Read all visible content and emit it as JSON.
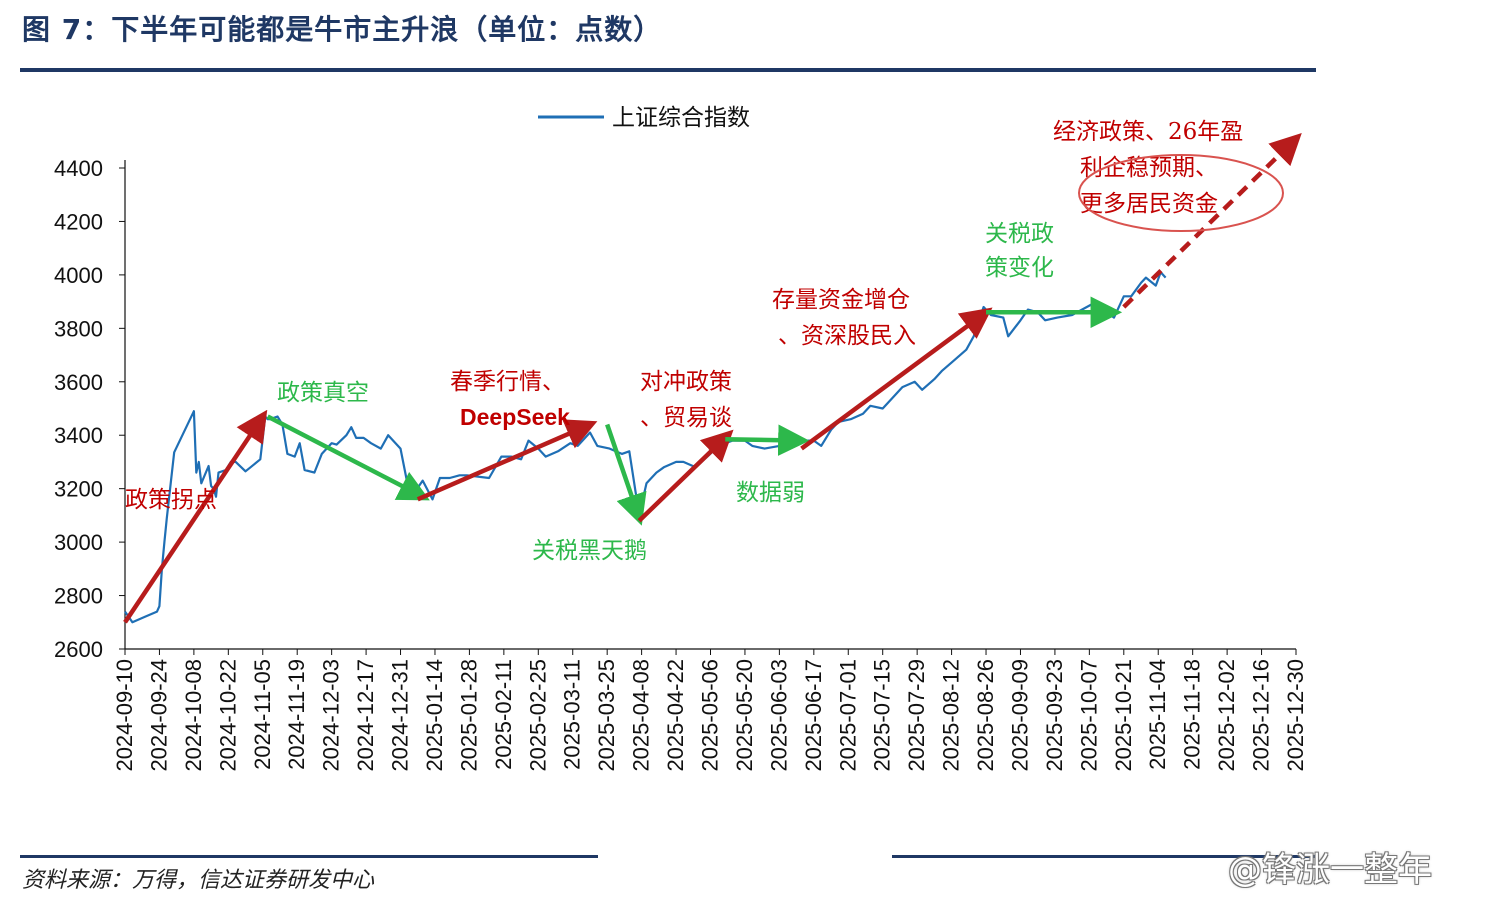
{
  "header": {
    "title": "图 7：下半年可能都是牛市主升浪（单位：点数）"
  },
  "footer": {
    "source": "资料来源：万得，信达证券研发中心",
    "watermark": "@锋涨一整年"
  },
  "colors": {
    "title": "#1f3864",
    "series": "#1f6fb5",
    "red_arrow": "#b71c1c",
    "green_arrow": "#2db84b",
    "red_text": "#c00000",
    "green_text": "#2db84b"
  },
  "chart_data": {
    "type": "line",
    "title": "",
    "xlabel": "",
    "ylabel": "",
    "ylim": [
      2600,
      4400
    ],
    "yticks": [
      2600,
      2800,
      3000,
      3200,
      3400,
      3600,
      3800,
      4000,
      4200,
      4400
    ],
    "xlim": [
      "2024-09-10",
      "2025-12-30"
    ],
    "xticks": [
      "2024-09-10",
      "2024-09-24",
      "2024-10-08",
      "2024-10-22",
      "2024-11-05",
      "2024-11-19",
      "2024-12-03",
      "2024-12-17",
      "2024-12-31",
      "2025-01-14",
      "2025-01-28",
      "2025-02-11",
      "2025-02-25",
      "2025-03-11",
      "2025-03-25",
      "2025-04-08",
      "2025-04-22",
      "2025-05-06",
      "2025-05-20",
      "2025-06-03",
      "2025-06-17",
      "2025-07-01",
      "2025-07-15",
      "2025-07-29",
      "2025-08-12",
      "2025-08-26",
      "2025-09-09",
      "2025-09-23",
      "2025-10-07",
      "2025-10-21",
      "2025-11-04",
      "2025-11-18",
      "2025-12-02",
      "2025-12-16",
      "2025-12-30"
    ],
    "grid": false,
    "legend": {
      "position": "top-center",
      "entries": [
        "上证综合指数"
      ]
    },
    "series": [
      {
        "name": "上证综合指数",
        "x": [
          "2024-09-10",
          "2024-09-13",
          "2024-09-18",
          "2024-09-23",
          "2024-09-24",
          "2024-09-25",
          "2024-09-26",
          "2024-09-27",
          "2024-09-30",
          "2024-10-08",
          "2024-10-09",
          "2024-10-10",
          "2024-10-11",
          "2024-10-14",
          "2024-10-15",
          "2024-10-16",
          "2024-10-17",
          "2024-10-18",
          "2024-10-21",
          "2024-10-23",
          "2024-10-25",
          "2024-10-29",
          "2024-10-31",
          "2024-11-04",
          "2024-11-05",
          "2024-11-06",
          "2024-11-07",
          "2024-11-08",
          "2024-11-11",
          "2024-11-13",
          "2024-11-15",
          "2024-11-18",
          "2024-11-20",
          "2024-11-22",
          "2024-11-26",
          "2024-11-29",
          "2024-12-03",
          "2024-12-05",
          "2024-12-09",
          "2024-12-11",
          "2024-12-13",
          "2024-12-16",
          "2024-12-19",
          "2024-12-23",
          "2024-12-26",
          "2024-12-31",
          "2025-01-03",
          "2025-01-06",
          "2025-01-09",
          "2025-01-13",
          "2025-01-16",
          "2025-01-20",
          "2025-01-24",
          "2025-01-27",
          "2025-02-05",
          "2025-02-10",
          "2025-02-14",
          "2025-02-18",
          "2025-02-21",
          "2025-02-25",
          "2025-02-28",
          "2025-03-05",
          "2025-03-10",
          "2025-03-13",
          "2025-03-18",
          "2025-03-21",
          "2025-03-26",
          "2025-03-31",
          "2025-04-03",
          "2025-04-07",
          "2025-04-08",
          "2025-04-10",
          "2025-04-14",
          "2025-04-17",
          "2025-04-22",
          "2025-04-25",
          "2025-04-30",
          "2025-05-07",
          "2025-05-12",
          "2025-05-15",
          "2025-05-20",
          "2025-05-23",
          "2025-05-28",
          "2025-06-03",
          "2025-06-06",
          "2025-06-10",
          "2025-06-13",
          "2025-06-17",
          "2025-06-20",
          "2025-06-24",
          "2025-06-27",
          "2025-07-02",
          "2025-07-07",
          "2025-07-10",
          "2025-07-15",
          "2025-07-18",
          "2025-07-23",
          "2025-07-28",
          "2025-07-31",
          "2025-08-05",
          "2025-08-08",
          "2025-08-13",
          "2025-08-18",
          "2025-08-21",
          "2025-08-25",
          "2025-08-28",
          "2025-09-02",
          "2025-09-04",
          "2025-09-09",
          "2025-09-12",
          "2025-09-16",
          "2025-09-19",
          "2025-09-24",
          "2025-09-30",
          "2025-10-10",
          "2025-10-14",
          "2025-10-17",
          "2025-10-21",
          "2025-10-24",
          "2025-10-28",
          "2025-10-30",
          "2025-11-03",
          "2025-11-05",
          "2025-11-07"
        ],
        "values": [
          2740,
          2700,
          2720,
          2740,
          2760,
          2900,
          3000,
          3090,
          3336,
          3490,
          3260,
          3300,
          3220,
          3285,
          3210,
          3200,
          3170,
          3260,
          3270,
          3300,
          3300,
          3265,
          3280,
          3310,
          3390,
          3470,
          3460,
          3460,
          3470,
          3440,
          3330,
          3320,
          3370,
          3270,
          3260,
          3330,
          3370,
          3365,
          3400,
          3430,
          3390,
          3390,
          3370,
          3350,
          3400,
          3350,
          3210,
          3190,
          3230,
          3160,
          3240,
          3240,
          3250,
          3250,
          3240,
          3320,
          3320,
          3310,
          3380,
          3350,
          3320,
          3340,
          3370,
          3360,
          3410,
          3360,
          3350,
          3330,
          3340,
          3100,
          3140,
          3220,
          3260,
          3280,
          3300,
          3300,
          3280,
          3340,
          3370,
          3380,
          3380,
          3360,
          3350,
          3360,
          3380,
          3390,
          3380,
          3380,
          3360,
          3420,
          3450,
          3460,
          3480,
          3510,
          3500,
          3530,
          3580,
          3600,
          3570,
          3610,
          3640,
          3680,
          3720,
          3770,
          3880,
          3850,
          3840,
          3770,
          3830,
          3870,
          3860,
          3830,
          3840,
          3850,
          3900,
          3860,
          3840,
          3920,
          3920,
          3970,
          3990,
          3960,
          4010,
          3990
        ]
      }
    ],
    "annotations": [
      {
        "id": "trend1",
        "text": "政策拐点",
        "color": "red",
        "from": [
          "2024-09-10",
          2700
        ],
        "to": [
          "2024-11-05",
          3470
        ]
      },
      {
        "id": "trend2",
        "text": "政策真空",
        "color": "green",
        "from": [
          "2024-11-07",
          3470
        ],
        "to": [
          "2025-01-09",
          3170
        ]
      },
      {
        "id": "trend3",
        "text": "春季行情、DeepSeek",
        "color": "red",
        "from": [
          "2025-01-07",
          3160
        ],
        "to": [
          "2025-03-18",
          3440
        ]
      },
      {
        "id": "trend4",
        "text": "关税黑天鹅",
        "color": "green",
        "from": [
          "2025-03-25",
          3440
        ],
        "to": [
          "2025-04-07",
          3090
        ]
      },
      {
        "id": "trend5",
        "text": "对冲政策、贸易谈判",
        "color": "red",
        "from": [
          "2025-04-07",
          3080
        ],
        "to": [
          "2025-05-13",
          3400
        ]
      },
      {
        "id": "trend6",
        "text": "数据弱",
        "color": "green",
        "from": [
          "2025-05-12",
          3385
        ],
        "to": [
          "2025-06-12",
          3380
        ]
      },
      {
        "id": "trend7",
        "text": "存量资金增仓、资深股民入市",
        "color": "red",
        "from": [
          "2025-06-12",
          3350
        ],
        "to": [
          "2025-08-26",
          3860
        ]
      },
      {
        "id": "trend8",
        "text": "关税政策变化",
        "color": "green",
        "from": [
          "2025-08-26",
          3860
        ],
        "to": [
          "2025-10-17",
          3860
        ]
      },
      {
        "id": "trend9",
        "text": "经济政策、26年盈利企稳预期、更多居民资金",
        "color": "red",
        "style": "dashed",
        "from": [
          "2025-10-21",
          3880
        ],
        "to": [
          "2025-12-30",
          4510
        ]
      }
    ]
  }
}
